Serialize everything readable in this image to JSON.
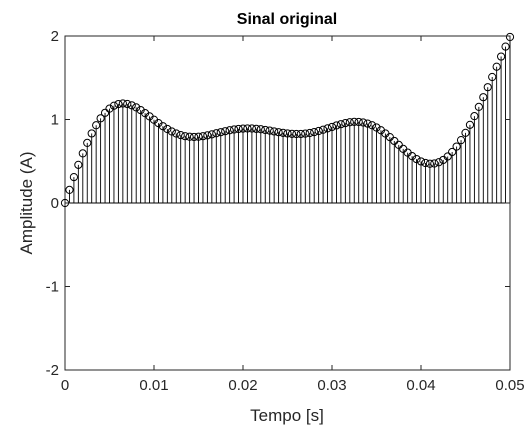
{
  "chart_data": {
    "type": "stem",
    "title": "Sinal original",
    "xlabel": "Tempo [s]",
    "ylabel": "Amplitude (A)",
    "xlim": [
      0,
      0.05
    ],
    "ylim": [
      -2,
      2
    ],
    "xticks": [
      "0",
      "0.01",
      "0.02",
      "0.03",
      "0.04",
      "0.05"
    ],
    "yticks": [
      "-2",
      "-1",
      "0",
      "1",
      "2"
    ],
    "grid": false,
    "marker": "open circle",
    "sample_interval": 0.0005,
    "x": [
      0.0,
      0.0005,
      0.001,
      0.0015,
      0.002,
      0.0025,
      0.003,
      0.0035,
      0.004,
      0.0045,
      0.005,
      0.0055,
      0.006,
      0.0065,
      0.007,
      0.0075,
      0.008,
      0.0085,
      0.009,
      0.0095,
      0.01,
      0.0105,
      0.011,
      0.0115,
      0.012,
      0.0125,
      0.013,
      0.0135,
      0.014,
      0.0145,
      0.015,
      0.0155,
      0.016,
      0.0165,
      0.017,
      0.0175,
      0.018,
      0.0185,
      0.019,
      0.0195,
      0.02,
      0.0205,
      0.021,
      0.0215,
      0.022,
      0.0225,
      0.023,
      0.0235,
      0.024,
      0.0245,
      0.025,
      0.0255,
      0.026,
      0.0265,
      0.027,
      0.0275,
      0.028,
      0.0285,
      0.029,
      0.0295,
      0.03,
      0.0305,
      0.031,
      0.0315,
      0.032,
      0.0325,
      0.033,
      0.0335,
      0.034,
      0.0345,
      0.035,
      0.0355,
      0.036,
      0.0365,
      0.037,
      0.0375,
      0.038,
      0.0385,
      0.039,
      0.0395,
      0.04,
      0.0405,
      0.041,
      0.0415,
      0.042,
      0.0425,
      0.043,
      0.0435,
      0.044,
      0.0445,
      0.045,
      0.0455,
      0.046,
      0.0465,
      0.047,
      0.0475,
      0.048,
      0.0485,
      0.049,
      0.0495,
      0.05
    ],
    "y": [
      0.0,
      0.157,
      0.31,
      0.457,
      0.594,
      0.72,
      0.833,
      0.931,
      1.014,
      1.08,
      1.13,
      1.165,
      1.185,
      1.192,
      1.186,
      1.17,
      1.145,
      1.113,
      1.076,
      1.037,
      0.997,
      0.957,
      0.92,
      0.886,
      0.856,
      0.832,
      0.813,
      0.8,
      0.793,
      0.791,
      0.794,
      0.8,
      0.81,
      0.822,
      0.835,
      0.848,
      0.86,
      0.871,
      0.88,
      0.887,
      0.891,
      0.893,
      0.892,
      0.888,
      0.883,
      0.875,
      0.867,
      0.857,
      0.848,
      0.84,
      0.833,
      0.828,
      0.826,
      0.827,
      0.831,
      0.838,
      0.849,
      0.862,
      0.877,
      0.894,
      0.911,
      0.929,
      0.944,
      0.957,
      0.967,
      0.972,
      0.971,
      0.964,
      0.951,
      0.931,
      0.904,
      0.871,
      0.832,
      0.789,
      0.743,
      0.696,
      0.648,
      0.603,
      0.561,
      0.526,
      0.498,
      0.479,
      0.47,
      0.473,
      0.488,
      0.516,
      0.557,
      0.611,
      0.676,
      0.753,
      0.84,
      0.936,
      1.04,
      1.151,
      1.267,
      1.387,
      1.509,
      1.632,
      1.754,
      1.873,
      1.988
    ]
  }
}
